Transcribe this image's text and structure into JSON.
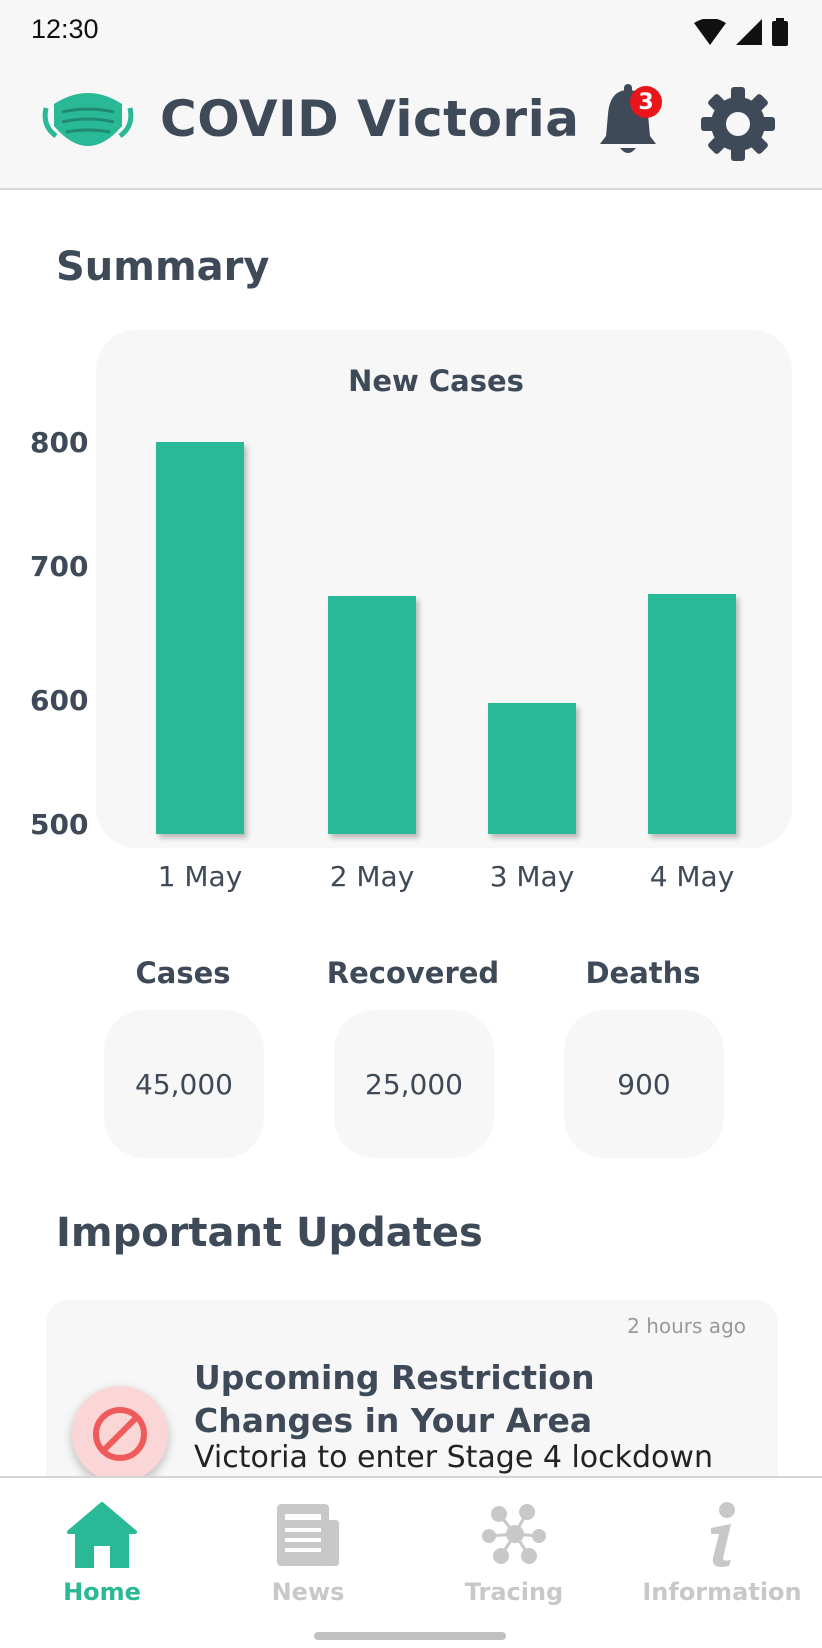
{
  "status_bar": {
    "time": "12:30"
  },
  "app_bar": {
    "title": "COVID Victoria",
    "notification_count": "3"
  },
  "summary": {
    "heading": "Summary",
    "stats": [
      {
        "label": "Cases",
        "value": "45,000"
      },
      {
        "label": "Recovered",
        "value": "25,000"
      },
      {
        "label": "Deaths",
        "value": "900"
      }
    ]
  },
  "chart_data": {
    "type": "bar",
    "title": "New Cases",
    "categories": [
      "1 May",
      "2 May",
      "3 May",
      "4 May"
    ],
    "values": [
      800,
      682,
      600,
      684
    ],
    "ylim": [
      500,
      800
    ],
    "yticks": [
      "800",
      "700",
      "600",
      "500"
    ],
    "xlabel": "",
    "ylabel": "",
    "grid": false,
    "color": "#2ab997"
  },
  "updates": {
    "heading": "Important Updates",
    "items": [
      {
        "time": "2 hours ago",
        "title": "Upcoming Restriction Changes in Your Area",
        "body": "Victoria to enter Stage 4 lockdown",
        "icon": "no-entry-icon"
      }
    ]
  },
  "bottom_nav": {
    "items": [
      {
        "label": "Home",
        "icon": "home-icon",
        "active": true
      },
      {
        "label": "News",
        "icon": "newspaper-icon",
        "active": false
      },
      {
        "label": "Tracing",
        "icon": "tracing-icon",
        "active": false
      },
      {
        "label": "Information",
        "icon": "info-icon",
        "active": false
      }
    ]
  },
  "colors": {
    "accent": "#2ab997",
    "text": "#3f4a59",
    "badge": "#e8161b"
  }
}
